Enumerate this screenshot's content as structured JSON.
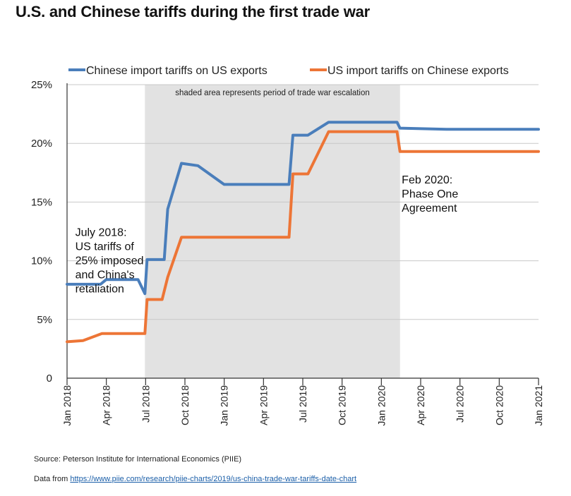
{
  "title": "U.S. and Chinese tariffs during the first trade war",
  "source": "Source: Peterson Institute for International Economics (PIIE)",
  "data_from_prefix": "Data from ",
  "data_from_link": "https://www.piie.com/research/piie-charts/2019/us-china-trade-war-tariffs-date-chart",
  "colors": {
    "china": "#4a7ebb",
    "us": "#ed7536",
    "shade": "#e2e2e2",
    "grid": "#c8c8c8"
  },
  "chart_data": {
    "type": "line",
    "ylim": [
      0,
      25
    ],
    "y_ticks": [
      0,
      5,
      10,
      15,
      20,
      25
    ],
    "y_tick_labels": [
      "0",
      "5%",
      "10%",
      "15%",
      "20%",
      "25%"
    ],
    "x_tick_labels": [
      "Jan 2018",
      "Apr 2018",
      "Jul 2018",
      "Oct 2018",
      "Jan 2019",
      "Apr 2019",
      "Jul 2019",
      "Oct 2019",
      "Jan 2020",
      "Apr 2020",
      "Jul 2020",
      "Oct 2020",
      "Jan 2021"
    ],
    "shaded_region": {
      "start": "2018-07-01",
      "end": "2020-02-14",
      "label": "shaded area represents period of trade war escalation"
    },
    "legend_position": "top",
    "series": [
      {
        "name": "Chinese import tariffs on US exports",
        "points": [
          [
            "2018-01-01",
            8.0
          ],
          [
            "2018-03-20",
            8.0
          ],
          [
            "2018-04-02",
            8.4
          ],
          [
            "2018-06-15",
            8.4
          ],
          [
            "2018-07-01",
            7.2
          ],
          [
            "2018-07-06",
            10.1
          ],
          [
            "2018-08-15",
            10.1
          ],
          [
            "2018-08-23",
            14.4
          ],
          [
            "2018-09-24",
            18.3
          ],
          [
            "2018-11-01",
            18.1
          ],
          [
            "2019-01-01",
            16.5
          ],
          [
            "2019-06-01",
            16.5
          ],
          [
            "2019-06-10",
            20.7
          ],
          [
            "2019-07-15",
            20.7
          ],
          [
            "2019-09-01",
            21.8
          ],
          [
            "2020-02-07",
            21.8
          ],
          [
            "2020-02-14",
            21.3
          ],
          [
            "2020-06-01",
            21.2
          ],
          [
            "2021-01-01",
            21.2
          ]
        ]
      },
      {
        "name": "US import tariffs on Chinese exports",
        "points": [
          [
            "2018-01-01",
            3.1
          ],
          [
            "2018-02-07",
            3.2
          ],
          [
            "2018-03-23",
            3.8
          ],
          [
            "2018-07-01",
            3.8
          ],
          [
            "2018-07-06",
            6.7
          ],
          [
            "2018-08-10",
            6.7
          ],
          [
            "2018-08-23",
            8.6
          ],
          [
            "2018-09-24",
            12.0
          ],
          [
            "2019-06-01",
            12.0
          ],
          [
            "2019-06-10",
            17.4
          ],
          [
            "2019-07-15",
            17.4
          ],
          [
            "2019-09-01",
            21.0
          ],
          [
            "2020-02-07",
            21.0
          ],
          [
            "2020-02-14",
            19.3
          ],
          [
            "2021-01-01",
            19.3
          ]
        ]
      }
    ],
    "annotations": [
      {
        "id": "july2018",
        "date": "2018-01-20",
        "value": 12.1,
        "lines": [
          "July 2018:",
          "US tariffs of",
          "25% imposed",
          "and China's",
          "retaliation"
        ]
      },
      {
        "id": "feb2020",
        "date": "2020-02-18",
        "value": 16.6,
        "lines": [
          "Feb 2020:",
          "Phase One",
          "Agreement"
        ]
      }
    ]
  }
}
